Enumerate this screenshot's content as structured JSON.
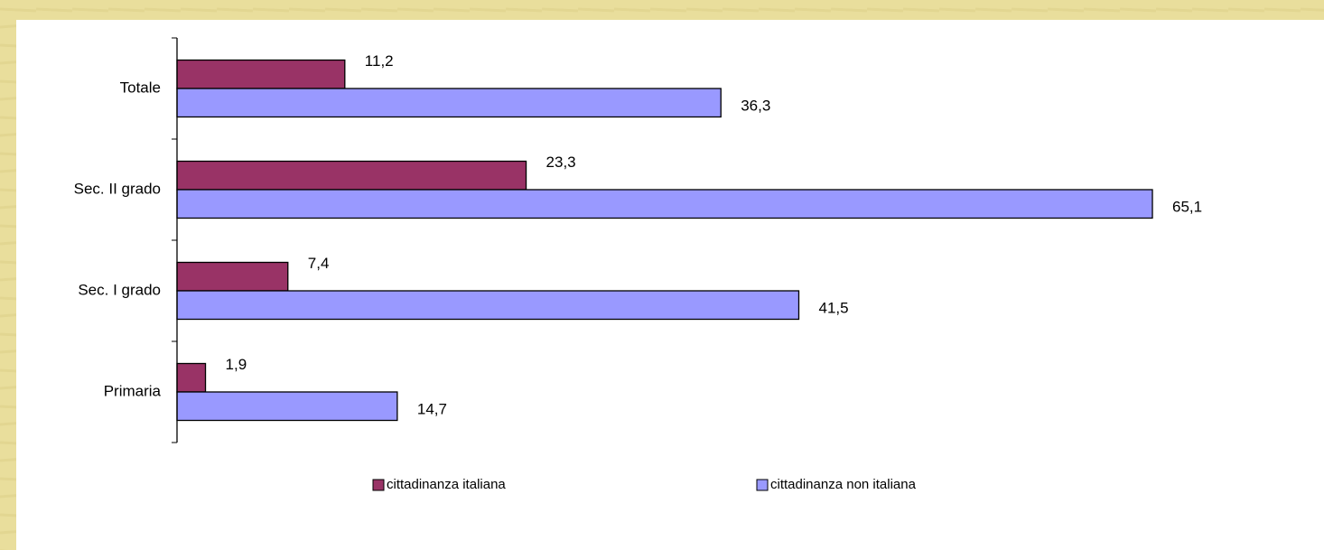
{
  "chart_data": {
    "type": "bar",
    "orientation": "horizontal",
    "categories": [
      "Totale",
      "Sec. II grado",
      "Sec. I grado",
      "Primaria"
    ],
    "series": [
      {
        "name": "cittadinanza italiana",
        "color": "#993366",
        "values": [
          11.2,
          23.3,
          7.4,
          1.9
        ],
        "value_labels": [
          "11,2",
          "23,3",
          "7,4",
          "1,9"
        ]
      },
      {
        "name": "cittadinanza non italiana",
        "color": "#9999ff",
        "values": [
          36.3,
          65.1,
          41.5,
          14.7
        ],
        "value_labels": [
          "36,3",
          "65,1",
          "41,5",
          "14,7"
        ]
      }
    ],
    "xlim": [
      0,
      70
    ],
    "grid": false,
    "legend": "bottom"
  }
}
